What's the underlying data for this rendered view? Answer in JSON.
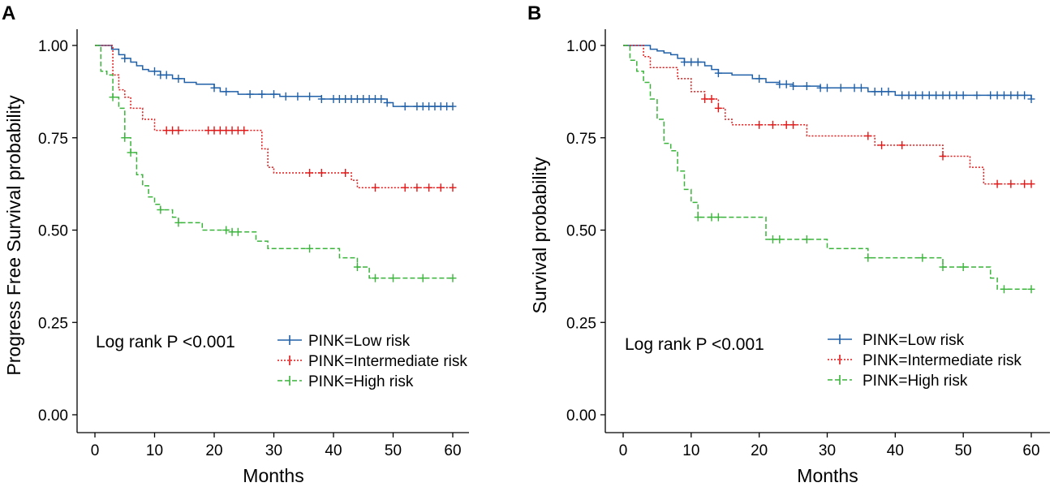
{
  "chart_data": [
    {
      "panel": "A",
      "type": "line",
      "subtype": "kaplan-meier",
      "xlabel": "Months",
      "ylabel": "Progress Free Survival probability",
      "xlim": [
        0,
        60
      ],
      "ylim": [
        0,
        1
      ],
      "xticks": [
        0,
        10,
        20,
        30,
        40,
        50,
        60
      ],
      "yticks": [
        0,
        0.25,
        0.5,
        0.75,
        1.0
      ],
      "xtick_labels": [
        "0",
        "10",
        "20",
        "30",
        "40",
        "50",
        "60"
      ],
      "ytick_labels": [
        "0.00",
        "0.25",
        "0.50",
        "0.75",
        "1.00"
      ],
      "annotation": "Log rank P <0.001",
      "legend": [
        "PINK=Low risk",
        "PINK=Intermediate risk",
        "PINK=High risk"
      ],
      "series": [
        {
          "name": "PINK=Low risk",
          "color": "#2060a8",
          "dash": "solid",
          "steps": [
            [
              0,
              1.0
            ],
            [
              2.8,
              0.99
            ],
            [
              4,
              0.975
            ],
            [
              5,
              0.965
            ],
            [
              6,
              0.955
            ],
            [
              7,
              0.945
            ],
            [
              8,
              0.935
            ],
            [
              9,
              0.93
            ],
            [
              11,
              0.92
            ],
            [
              13,
              0.91
            ],
            [
              15,
              0.9
            ],
            [
              17,
              0.895
            ],
            [
              20,
              0.885
            ],
            [
              21,
              0.875
            ],
            [
              24,
              0.868
            ],
            [
              31,
              0.862
            ],
            [
              38,
              0.855
            ],
            [
              49,
              0.845
            ],
            [
              50,
              0.835
            ],
            [
              60,
              0.835
            ]
          ],
          "censor": [
            5,
            10,
            11,
            12,
            14,
            20,
            22,
            26,
            28,
            30,
            32,
            34,
            36,
            38,
            40,
            41,
            42,
            43,
            44,
            45,
            46,
            47,
            48,
            49,
            52,
            54,
            55,
            56,
            57,
            58,
            59,
            60
          ]
        },
        {
          "name": "PINK=Intermediate risk",
          "color": "#e01818",
          "dash": "dotted",
          "steps": [
            [
              0,
              1.0
            ],
            [
              3,
              0.92
            ],
            [
              4,
              0.88
            ],
            [
              5,
              0.86
            ],
            [
              6,
              0.83
            ],
            [
              8,
              0.8
            ],
            [
              10,
              0.77
            ],
            [
              28,
              0.72
            ],
            [
              29,
              0.67
            ],
            [
              30,
              0.655
            ],
            [
              43,
              0.635
            ],
            [
              44,
              0.615
            ],
            [
              60,
              0.615
            ]
          ],
          "censor": [
            12,
            13,
            14,
            19,
            20,
            21,
            22,
            23,
            24,
            25,
            36,
            38,
            42,
            47,
            52,
            54,
            56,
            58,
            60
          ]
        },
        {
          "name": "PINK=High risk",
          "color": "#3ab43a",
          "dash": "dashed",
          "steps": [
            [
              0,
              1.0
            ],
            [
              1,
              0.93
            ],
            [
              2,
              0.92
            ],
            [
              3,
              0.86
            ],
            [
              4,
              0.83
            ],
            [
              5,
              0.75
            ],
            [
              6,
              0.71
            ],
            [
              7,
              0.65
            ],
            [
              8,
              0.62
            ],
            [
              9,
              0.59
            ],
            [
              10,
              0.57
            ],
            [
              11,
              0.555
            ],
            [
              13,
              0.535
            ],
            [
              14,
              0.52
            ],
            [
              18,
              0.5
            ],
            [
              23,
              0.495
            ],
            [
              27,
              0.47
            ],
            [
              29,
              0.45
            ],
            [
              41,
              0.425
            ],
            [
              44,
              0.4
            ],
            [
              46,
              0.37
            ],
            [
              60,
              0.37
            ]
          ],
          "censor": [
            3,
            5,
            6,
            11,
            14,
            22,
            23,
            24,
            36,
            44,
            47,
            50,
            55,
            60
          ]
        }
      ]
    },
    {
      "panel": "B",
      "type": "line",
      "subtype": "kaplan-meier",
      "xlabel": "Months",
      "ylabel": "Survival probability",
      "xlim": [
        0,
        60
      ],
      "ylim": [
        0,
        1
      ],
      "xticks": [
        0,
        10,
        20,
        30,
        40,
        50,
        60
      ],
      "yticks": [
        0,
        0.25,
        0.5,
        0.75,
        1.0
      ],
      "xtick_labels": [
        "0",
        "10",
        "20",
        "30",
        "40",
        "50",
        "60"
      ],
      "ytick_labels": [
        "0.00",
        "0.25",
        "0.50",
        "0.75",
        "1.00"
      ],
      "annotation": "Log rank P <0.001",
      "legend": [
        "PINK=Low risk",
        "PINK=Intermediate risk",
        "PINK=High risk"
      ],
      "series": [
        {
          "name": "PINK=Low risk",
          "color": "#2060a8",
          "dash": "solid",
          "steps": [
            [
              0,
              1.0
            ],
            [
              4,
              0.99
            ],
            [
              5,
              0.985
            ],
            [
              6,
              0.98
            ],
            [
              7,
              0.975
            ],
            [
              8,
              0.965
            ],
            [
              9,
              0.955
            ],
            [
              12,
              0.945
            ],
            [
              13,
              0.935
            ],
            [
              14,
              0.925
            ],
            [
              16,
              0.92
            ],
            [
              19,
              0.91
            ],
            [
              21,
              0.9
            ],
            [
              23,
              0.895
            ],
            [
              25,
              0.89
            ],
            [
              29,
              0.885
            ],
            [
              36,
              0.875
            ],
            [
              40,
              0.865
            ],
            [
              60,
              0.855
            ]
          ],
          "censor": [
            9,
            10,
            11,
            14,
            20,
            23,
            24,
            25,
            27,
            29,
            30,
            32,
            34,
            35,
            37,
            38,
            39,
            41,
            42,
            43,
            44,
            45,
            46,
            47,
            48,
            49,
            50,
            52,
            54,
            55,
            56,
            57,
            58,
            59,
            60
          ]
        },
        {
          "name": "PINK=Intermediate risk",
          "color": "#e01818",
          "dash": "dotted",
          "steps": [
            [
              0,
              1.0
            ],
            [
              3,
              0.97
            ],
            [
              4,
              0.94
            ],
            [
              8,
              0.91
            ],
            [
              10,
              0.875
            ],
            [
              12,
              0.855
            ],
            [
              14,
              0.83
            ],
            [
              15,
              0.8
            ],
            [
              16,
              0.785
            ],
            [
              27,
              0.755
            ],
            [
              37,
              0.73
            ],
            [
              47,
              0.7
            ],
            [
              51,
              0.67
            ],
            [
              53,
              0.625
            ],
            [
              60,
              0.625
            ]
          ],
          "censor": [
            12,
            13,
            14,
            20,
            22,
            24,
            25,
            36,
            38,
            41,
            47,
            55,
            57,
            59,
            60
          ]
        },
        {
          "name": "PINK=High risk",
          "color": "#3ab43a",
          "dash": "dashed",
          "steps": [
            [
              0,
              1.0
            ],
            [
              1,
              0.96
            ],
            [
              2,
              0.93
            ],
            [
              3,
              0.9
            ],
            [
              4,
              0.855
            ],
            [
              5,
              0.8
            ],
            [
              6,
              0.735
            ],
            [
              7,
              0.715
            ],
            [
              8,
              0.66
            ],
            [
              9,
              0.61
            ],
            [
              10,
              0.575
            ],
            [
              11,
              0.535
            ],
            [
              21,
              0.475
            ],
            [
              30,
              0.45
            ],
            [
              36,
              0.425
            ],
            [
              47,
              0.4
            ],
            [
              54,
              0.37
            ],
            [
              55,
              0.34
            ],
            [
              60,
              0.34
            ]
          ],
          "censor": [
            11,
            13,
            14,
            22,
            23,
            27,
            36,
            44,
            47,
            50,
            56,
            60
          ]
        }
      ]
    }
  ]
}
